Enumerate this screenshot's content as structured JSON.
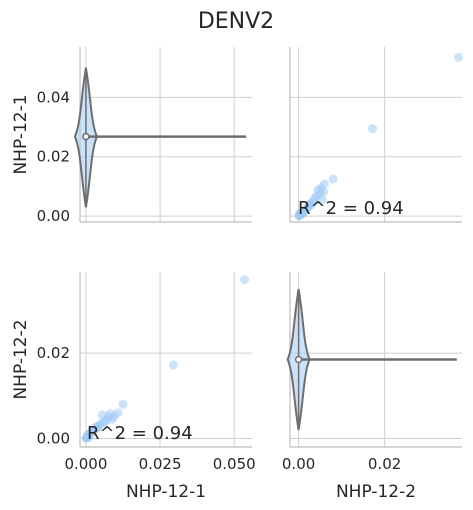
{
  "chart_data": {
    "type": "scatter",
    "title": "DENV2",
    "variables": [
      "NHP-12-1",
      "NHP-12-2"
    ],
    "colors": {
      "points": "#9ecbf5",
      "violin": "#6e6e6e",
      "violin_fill": "#a7d0f7",
      "grid": "#cfcfcf",
      "axis": "#bdbdbd"
    },
    "x_ranges": [
      [
        -0.002,
        0.056
      ],
      [
        -0.002,
        0.038
      ]
    ],
    "y_ranges": [
      [
        -0.002,
        0.057
      ],
      [
        -0.002,
        0.039
      ]
    ],
    "x_ticks": [
      [
        {
          "v": 0.0,
          "label": "0.000"
        },
        {
          "v": 0.025,
          "label": "0.025"
        },
        {
          "v": 0.05,
          "label": "0.050"
        }
      ],
      [
        {
          "v": 0.0,
          "label": "0.00"
        },
        {
          "v": 0.02,
          "label": "0.02"
        }
      ]
    ],
    "y_ticks": [
      [
        {
          "v": 0.0,
          "label": "0.00"
        },
        {
          "v": 0.02,
          "label": "0.02"
        },
        {
          "v": 0.04,
          "label": "0.04"
        }
      ],
      [
        {
          "v": 0.0,
          "label": "0.00"
        },
        {
          "v": 0.02,
          "label": "0.02"
        }
      ]
    ],
    "diagonal_violins": [
      {
        "var": "NHP-12-1",
        "center": 0.0268,
        "y_min": 0.003,
        "y_max": 0.05,
        "q1": 0.0262,
        "q3": 0.0275,
        "whisker_to": 0.054
      },
      {
        "var": "NHP-12-2",
        "center": 0.0185,
        "y_min": 0.002,
        "y_max": 0.035,
        "q1": 0.018,
        "q3": 0.019,
        "whisker_to": 0.0368
      }
    ],
    "scatter_points": {
      "x": [
        0.0535,
        0.0295,
        0.0125,
        0.0108,
        0.0095,
        0.0088,
        0.0082,
        0.0075,
        0.0068,
        0.0062,
        0.0055,
        0.005,
        0.0045,
        0.004,
        0.0035,
        0.003,
        0.0025,
        0.002,
        0.0015,
        0.0012,
        0.001,
        0.0008,
        0.0006,
        0.0005,
        0.0004,
        0.0003,
        0.0002,
        0.0001,
        0.0006,
        0.0009
      ],
      "y": [
        0.0372,
        0.0172,
        0.008,
        0.006,
        0.0052,
        0.0045,
        0.0058,
        0.005,
        0.0042,
        0.0038,
        0.0055,
        0.0035,
        0.003,
        0.0025,
        0.0028,
        0.0022,
        0.0018,
        0.0015,
        0.0012,
        0.001,
        0.0008,
        0.0006,
        0.0005,
        0.0004,
        0.0003,
        0.0002,
        0.0001,
        0.0001,
        0.0009,
        0.0003
      ]
    },
    "annotations": [
      "R^2 = 0.94",
      "R^2 = 0.94"
    ]
  }
}
